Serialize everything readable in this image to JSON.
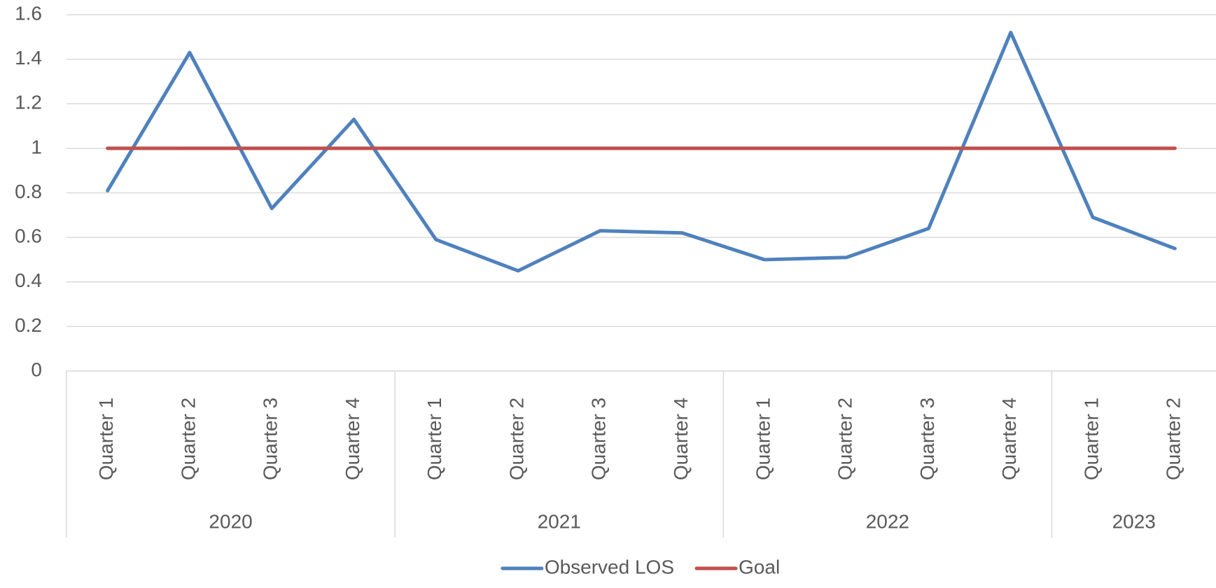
{
  "chart_data": {
    "type": "line",
    "categories": [
      "Quarter 1",
      "Quarter 2",
      "Quarter 3",
      "Quarter 4",
      "Quarter 1",
      "Quarter 2",
      "Quarter 3",
      "Quarter 4",
      "Quarter 1",
      "Quarter 2",
      "Quarter 3",
      "Quarter 4",
      "Quarter 1",
      "Quarter 2"
    ],
    "category_groups": [
      {
        "name": "2020",
        "count": 4
      },
      {
        "name": "2021",
        "count": 4
      },
      {
        "name": "2022",
        "count": 4
      },
      {
        "name": "2023",
        "count": 2
      }
    ],
    "series": [
      {
        "name": "Observed LOS",
        "color": "#4f81bd",
        "values": [
          0.81,
          1.43,
          0.73,
          1.13,
          0.59,
          0.45,
          0.63,
          0.62,
          0.5,
          0.51,
          0.64,
          1.52,
          0.69,
          0.55
        ]
      },
      {
        "name": "Goal",
        "color": "#c0504d",
        "values": [
          1,
          1,
          1,
          1,
          1,
          1,
          1,
          1,
          1,
          1,
          1,
          1,
          1,
          1
        ]
      }
    ],
    "ylim": [
      0,
      1.6
    ],
    "yticks": [
      0,
      0.2,
      0.4,
      0.6,
      0.8,
      1,
      1.2,
      1.4,
      1.6
    ],
    "grid": true,
    "legend": "bottom"
  }
}
